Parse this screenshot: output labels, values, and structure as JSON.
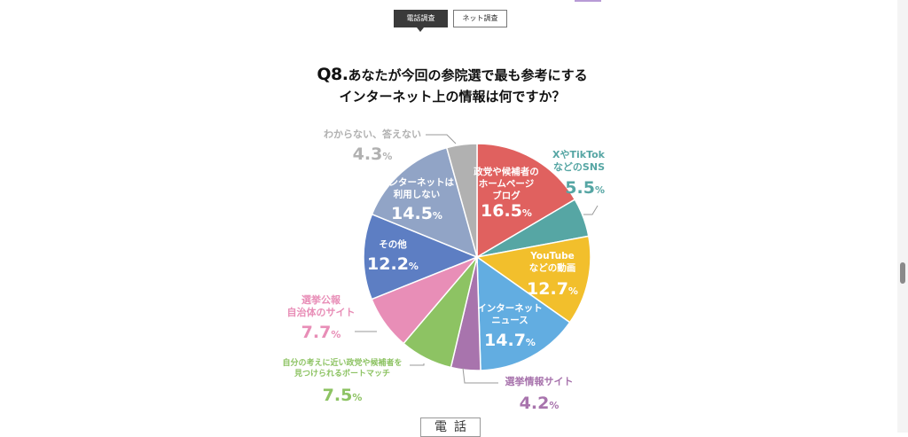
{
  "tabs": [
    {
      "label": "電話調査",
      "active": true
    },
    {
      "label": "ネット調査",
      "active": false
    }
  ],
  "question": {
    "number": "Q8.",
    "line1": "あなたが今回の参院選で最も参考にする",
    "line2": "インターネット上の情報は何ですか？"
  },
  "footer_label": "電話",
  "chart_data": {
    "type": "pie",
    "unit": "%",
    "slices": [
      {
        "label": [
          "政党や候補者の",
          "ホームページ",
          "ブログ"
        ],
        "value": 16.5,
        "color": "#e0615f"
      },
      {
        "label": [
          "XやTikTok",
          "などのSNS"
        ],
        "value": 5.5,
        "color": "#56a6a4"
      },
      {
        "label": [
          "YouTube",
          "などの動画"
        ],
        "value": 12.7,
        "color": "#f2bf2c"
      },
      {
        "label": [
          "インターネット",
          "ニュース"
        ],
        "value": 14.7,
        "color": "#62ade1"
      },
      {
        "label": [
          "選挙情報サイト"
        ],
        "value": 4.2,
        "color": "#a874ad"
      },
      {
        "label": [
          "自分の考えに近い政党や候補者を",
          "見つけられるボートマッチ"
        ],
        "value": 7.5,
        "color": "#8dc363"
      },
      {
        "label": [
          "選挙公報",
          "自治体のサイト"
        ],
        "value": 7.7,
        "color": "#e88eb7"
      },
      {
        "label": [
          "その他"
        ],
        "value": 12.2,
        "color": "#5d7ec3"
      },
      {
        "label": [
          "インターネットは",
          "利用しない"
        ],
        "value": 14.5,
        "color": "#91a4c6"
      },
      {
        "label": [
          "わからない、答えない"
        ],
        "value": 4.3,
        "color": "#b1b1b1"
      }
    ]
  }
}
